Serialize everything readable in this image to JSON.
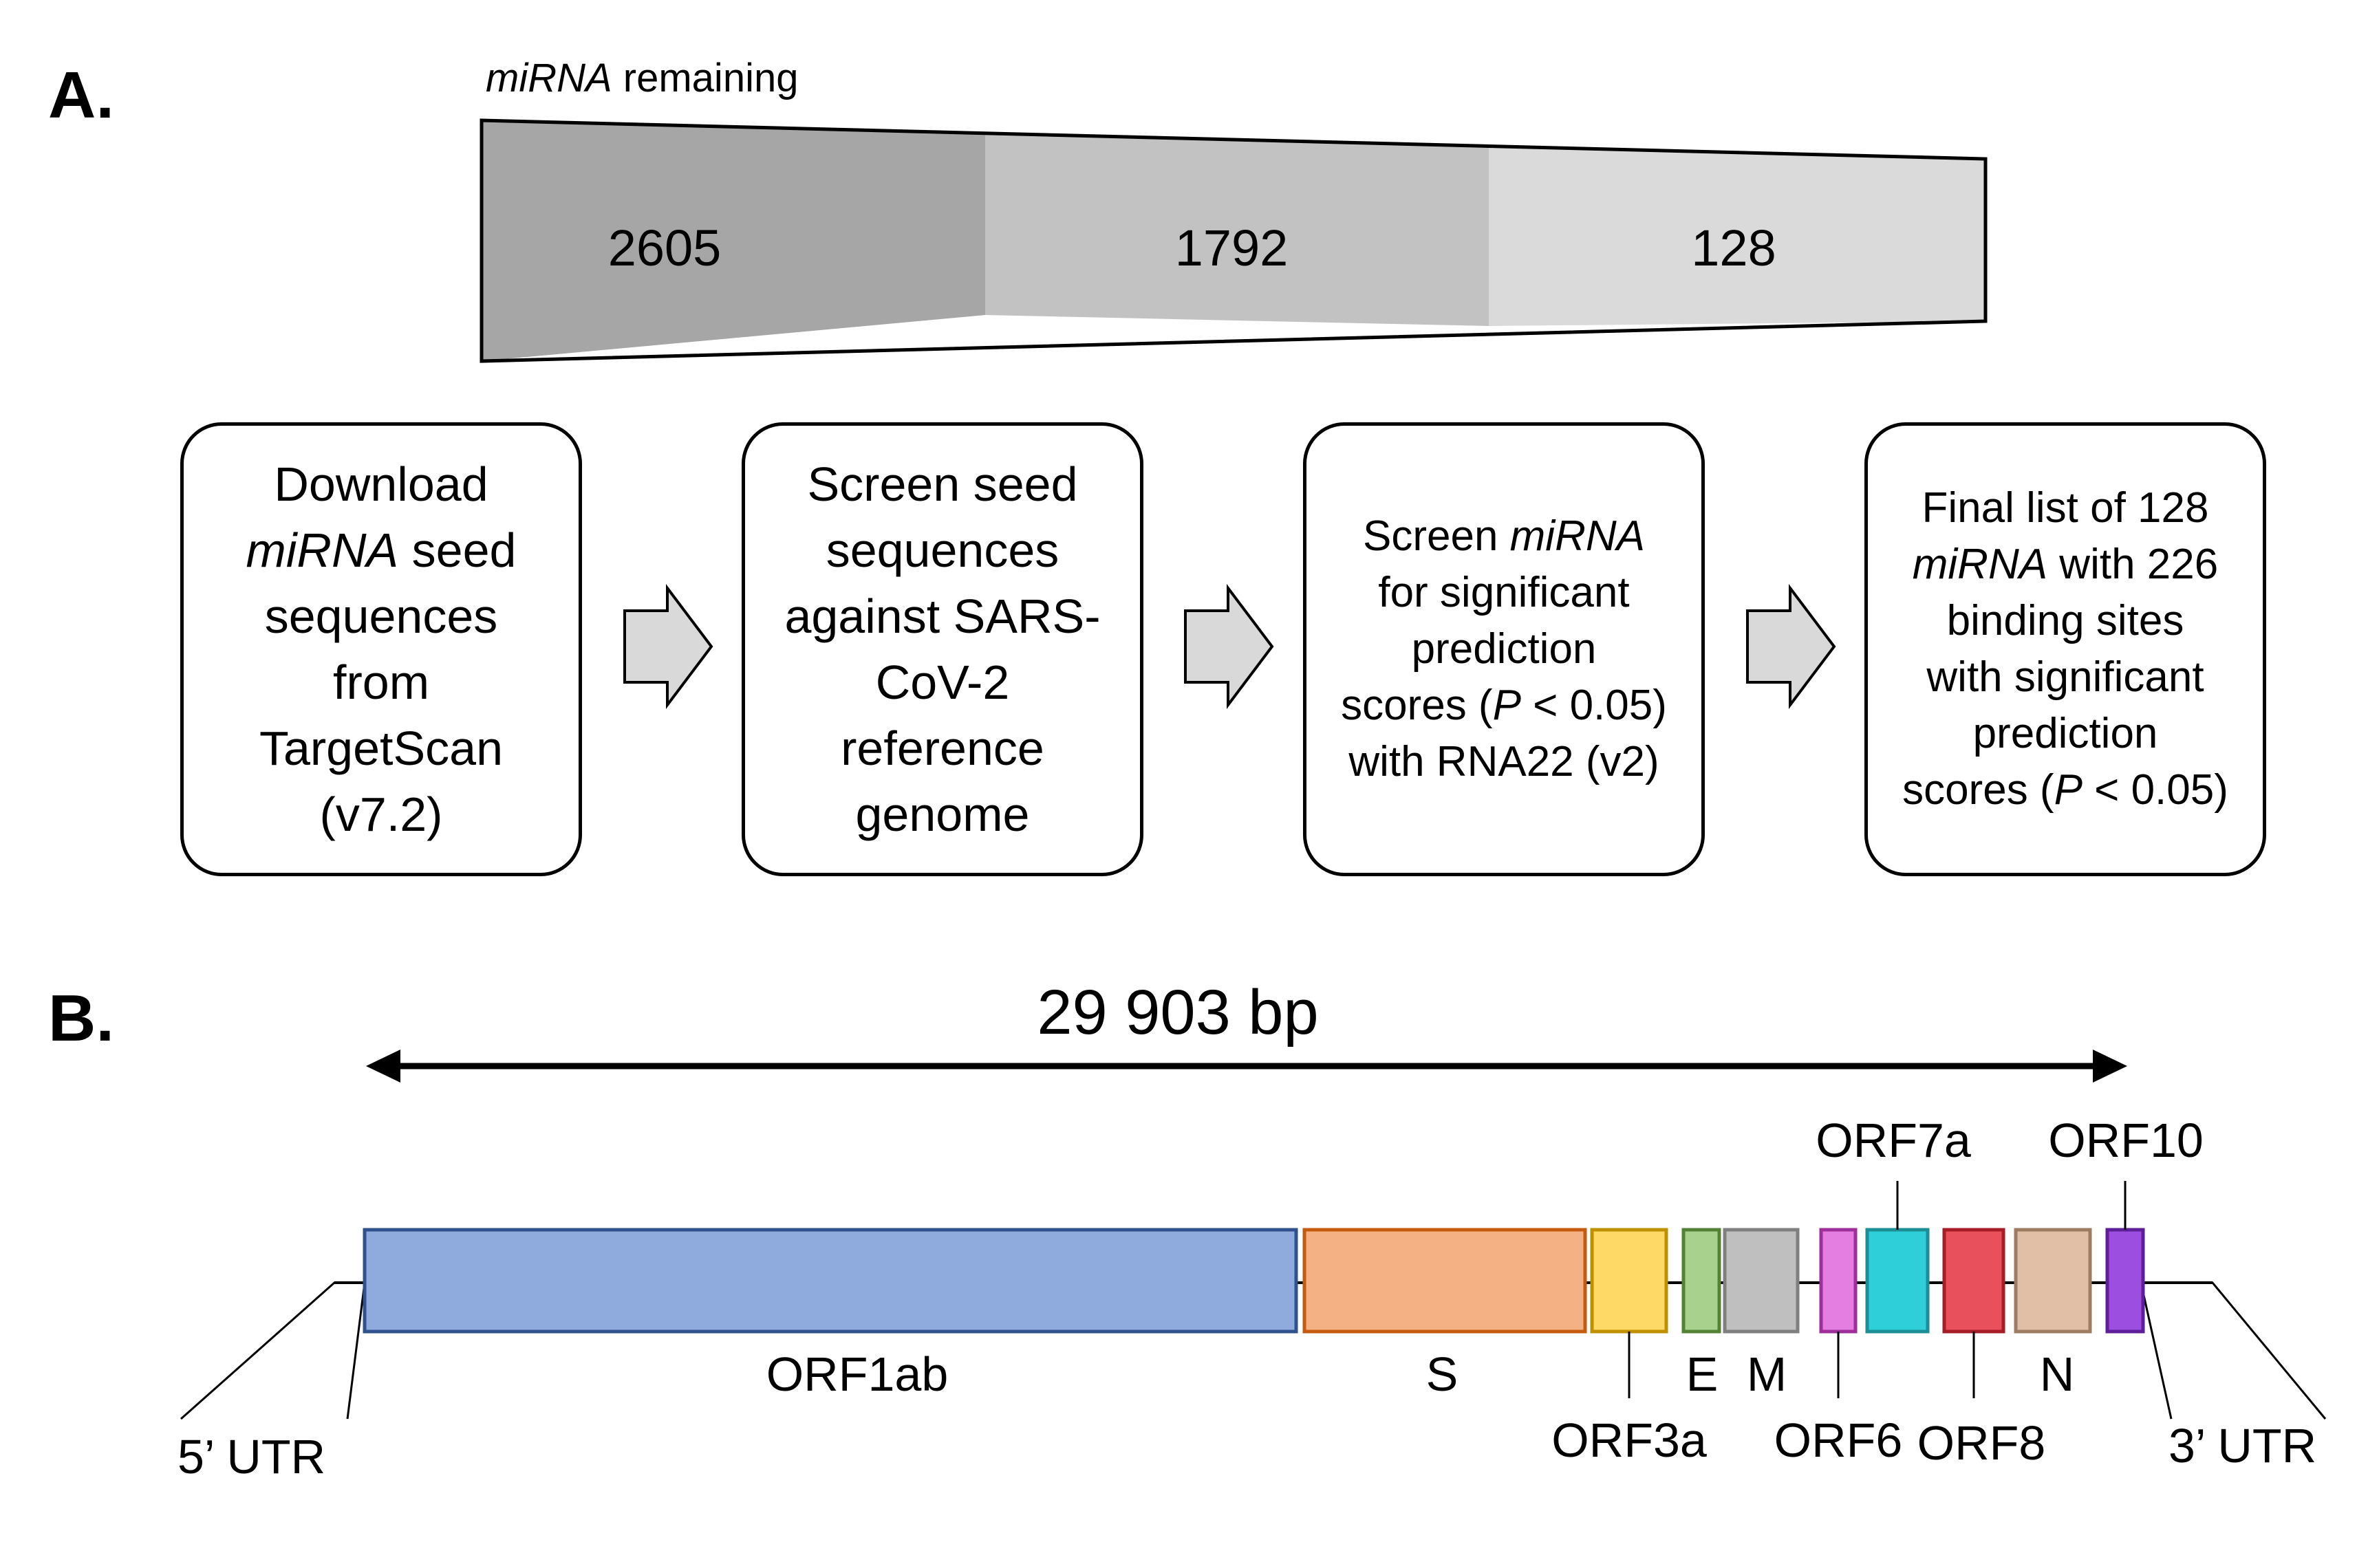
{
  "panelA": {
    "label": "A.",
    "caption_italic": "miRNA",
    "caption_rest": " remaining",
    "counts": [
      "2605",
      "1792",
      "128"
    ],
    "count_colors": [
      "#a6a6a6",
      "#c2c2c2",
      "#dadada"
    ],
    "steps": [
      {
        "lines": [
          "Download",
          "{i}miRNA{/i} seed",
          "sequences",
          "from",
          "TargetScan",
          "(v7.2)"
        ]
      },
      {
        "lines": [
          "Screen seed",
          "sequences",
          "against SARS-",
          "CoV-2",
          "reference",
          "genome"
        ]
      },
      {
        "lines": [
          "Screen {i}miRNA{/i}",
          "for significant",
          "prediction",
          "scores ({i}P{/i} < 0.05)",
          "with RNA22 (v2)"
        ]
      },
      {
        "lines": [
          "Final list of 128",
          "{i}miRNA{/i} with 226",
          "binding sites",
          "with significant",
          "prediction",
          "scores ({i}P{/i} < 0.05)"
        ]
      }
    ]
  },
  "panelB": {
    "label": "B.",
    "genome_length": "29 903 bp",
    "genes": [
      {
        "name": "ORF1ab",
        "color": "#8faadc",
        "border": "#2f528f"
      },
      {
        "name": "S",
        "color": "#f4b183",
        "border": "#c55a11"
      },
      {
        "name": "ORF3a",
        "color": "#ffd966",
        "border": "#bf9000"
      },
      {
        "name": "E",
        "color": "#a9d18e",
        "border": "#548235"
      },
      {
        "name": "M",
        "color": "#bfbfbf",
        "border": "#7f7f7f"
      },
      {
        "name": "ORF6",
        "color": "#e47ee0",
        "border": "#9e2f9a"
      },
      {
        "name": "ORF7a",
        "color": "#2ecfd8",
        "border": "#1b8f95"
      },
      {
        "name": "ORF8",
        "color": "#e8505b",
        "border": "#a61d28"
      },
      {
        "name": "N",
        "color": "#e0bfa6",
        "border": "#9e7c63"
      },
      {
        "name": "ORF10",
        "color": "#9b4ee0",
        "border": "#5d1f99"
      }
    ],
    "utr5": "5’ UTR",
    "utr3": "3’ UTR"
  }
}
